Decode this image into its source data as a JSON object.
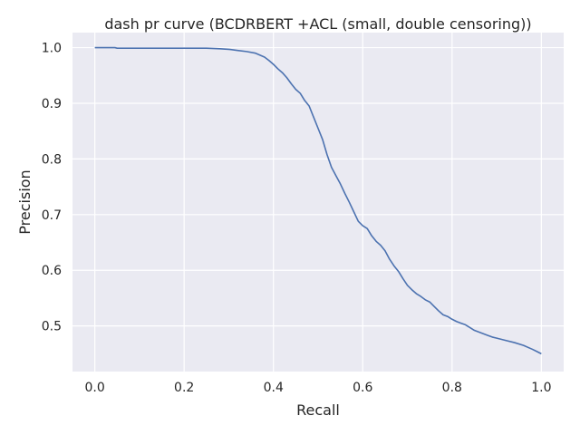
{
  "chart_data": {
    "type": "line",
    "title": "dash pr curve (BCDRBERT +ACL (small, double censoring))",
    "xlabel": "Recall",
    "ylabel": "Precision",
    "xlim": [
      -0.05,
      1.05
    ],
    "ylim": [
      0.418,
      1.027
    ],
    "x_ticks": [
      0.0,
      0.2,
      0.4,
      0.6,
      0.8,
      1.0
    ],
    "x_tick_labels": [
      "0.0",
      "0.2",
      "0.4",
      "0.6",
      "0.8",
      "1.0"
    ],
    "y_ticks": [
      0.5,
      0.6,
      0.7,
      0.8,
      0.9,
      1.0
    ],
    "y_tick_labels": [
      "0.5",
      "0.6",
      "0.7",
      "0.8",
      "0.9",
      "1.0"
    ],
    "grid": true,
    "colors": {
      "background": "#eaeaf2",
      "grid": "#ffffff",
      "line": "#4c72b0",
      "text": "#262626"
    },
    "series": [
      {
        "x": [
          0.0,
          0.045,
          0.05,
          0.1,
          0.15,
          0.2,
          0.25,
          0.28,
          0.3,
          0.32,
          0.34,
          0.36,
          0.38,
          0.39,
          0.4,
          0.41,
          0.42,
          0.43,
          0.44,
          0.45,
          0.46,
          0.47,
          0.48,
          0.49,
          0.5,
          0.51,
          0.52,
          0.53,
          0.54,
          0.55,
          0.56,
          0.57,
          0.58,
          0.59,
          0.6,
          0.61,
          0.62,
          0.63,
          0.64,
          0.65,
          0.66,
          0.67,
          0.68,
          0.69,
          0.7,
          0.71,
          0.72,
          0.73,
          0.74,
          0.75,
          0.76,
          0.77,
          0.78,
          0.79,
          0.8,
          0.81,
          0.82,
          0.83,
          0.84,
          0.85,
          0.86,
          0.87,
          0.88,
          0.89,
          0.9,
          0.92,
          0.94,
          0.96,
          0.98,
          0.99,
          1.0
        ],
        "y": [
          1.0,
          1.0,
          0.999,
          0.999,
          0.999,
          0.999,
          0.999,
          0.998,
          0.997,
          0.995,
          0.993,
          0.99,
          0.983,
          0.977,
          0.97,
          0.962,
          0.955,
          0.946,
          0.935,
          0.925,
          0.918,
          0.905,
          0.895,
          0.875,
          0.855,
          0.835,
          0.808,
          0.785,
          0.77,
          0.755,
          0.738,
          0.722,
          0.705,
          0.688,
          0.68,
          0.675,
          0.662,
          0.652,
          0.645,
          0.635,
          0.62,
          0.608,
          0.598,
          0.585,
          0.573,
          0.565,
          0.558,
          0.553,
          0.547,
          0.543,
          0.535,
          0.527,
          0.52,
          0.517,
          0.512,
          0.508,
          0.505,
          0.502,
          0.497,
          0.492,
          0.489,
          0.486,
          0.483,
          0.48,
          0.478,
          0.474,
          0.47,
          0.465,
          0.458,
          0.454,
          0.45
        ]
      }
    ]
  }
}
